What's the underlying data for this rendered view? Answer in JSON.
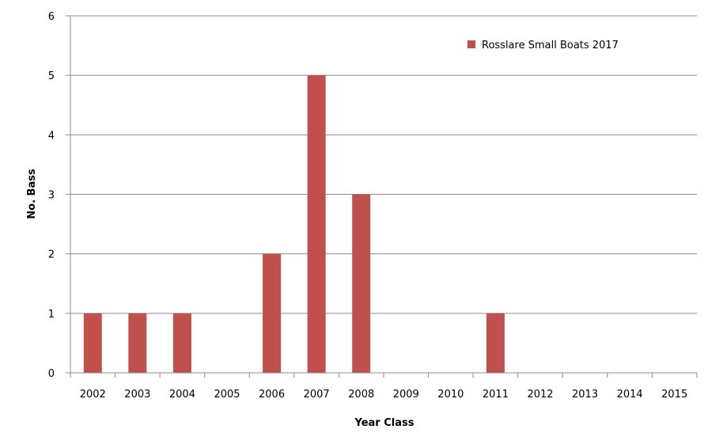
{
  "chart_data": {
    "type": "bar",
    "categories": [
      "2002",
      "2003",
      "2004",
      "2005",
      "2006",
      "2007",
      "2008",
      "2009",
      "2010",
      "2011",
      "2012",
      "2013",
      "2014",
      "2015"
    ],
    "series": [
      {
        "name": "Rosslare Small Boats 2017",
        "values": [
          1,
          1,
          1,
          0,
          2,
          5,
          3,
          0,
          0,
          1,
          0,
          0,
          0,
          0
        ],
        "color": "#C0504D"
      }
    ],
    "xlabel": "Year Class",
    "ylabel": "No. Bass",
    "ylim": [
      0,
      6
    ],
    "yticks": [
      0,
      1,
      2,
      3,
      4,
      5,
      6
    ],
    "grid": true,
    "legend_position": "top-right"
  }
}
